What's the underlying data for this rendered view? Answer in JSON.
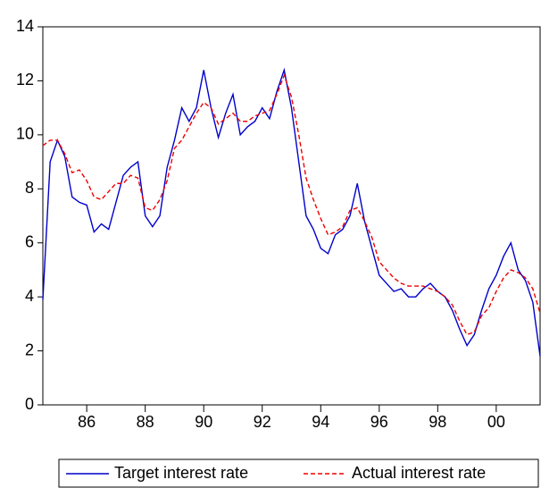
{
  "chart_data": {
    "type": "line",
    "x": [
      1984.5,
      1984.75,
      1985,
      1985.25,
      1985.5,
      1985.75,
      1986,
      1986.25,
      1986.5,
      1986.75,
      1987,
      1987.25,
      1987.5,
      1987.75,
      1988,
      1988.25,
      1988.5,
      1988.75,
      1989,
      1989.25,
      1989.5,
      1989.75,
      1990,
      1990.25,
      1990.5,
      1990.75,
      1991,
      1991.25,
      1991.5,
      1991.75,
      1992,
      1992.25,
      1992.5,
      1992.75,
      1993,
      1993.25,
      1993.5,
      1993.75,
      1994,
      1994.25,
      1994.5,
      1994.75,
      1995,
      1995.25,
      1995.5,
      1995.75,
      1996,
      1996.25,
      1996.5,
      1996.75,
      1997,
      1997.25,
      1997.5,
      1997.75,
      1998,
      1998.25,
      1998.5,
      1998.75,
      1999,
      1999.25,
      1999.5,
      1999.75,
      2000,
      2000.25,
      2000.5,
      2000.75,
      2001,
      2001.25,
      2001.5
    ],
    "series": [
      {
        "name": "Target interest rate",
        "color": "#0000cc",
        "dash": false,
        "values": [
          3.9,
          9.0,
          9.8,
          9.2,
          7.7,
          7.5,
          7.4,
          6.4,
          6.7,
          6.5,
          7.5,
          8.5,
          8.8,
          9.0,
          7.0,
          6.6,
          7.0,
          8.8,
          9.8,
          11.0,
          10.5,
          11.0,
          12.4,
          11.0,
          9.9,
          10.8,
          11.5,
          10.0,
          10.3,
          10.5,
          11.0,
          10.6,
          11.6,
          12.4,
          11.0,
          9.0,
          7.0,
          6.5,
          5.8,
          5.6,
          6.3,
          6.5,
          7.0,
          8.2,
          6.8,
          5.8,
          4.8,
          4.5,
          4.2,
          4.3,
          4.0,
          4.0,
          4.3,
          4.5,
          4.2,
          4.0,
          3.5,
          2.8,
          2.2,
          2.6,
          3.5,
          4.3,
          4.8,
          5.5,
          6.0,
          5.0,
          4.6,
          3.8,
          1.8
        ]
      },
      {
        "name": "Actual interest rate",
        "color": "#ee0000",
        "dash": true,
        "values": [
          9.6,
          9.8,
          9.8,
          9.3,
          8.6,
          8.7,
          8.3,
          7.7,
          7.6,
          7.9,
          8.2,
          8.2,
          8.5,
          8.4,
          7.3,
          7.2,
          7.6,
          8.3,
          9.5,
          9.8,
          10.3,
          10.8,
          11.2,
          11.0,
          10.4,
          10.6,
          10.8,
          10.5,
          10.5,
          10.7,
          10.8,
          10.9,
          11.5,
          12.2,
          11.4,
          10.0,
          8.4,
          7.6,
          6.9,
          6.3,
          6.4,
          6.6,
          7.2,
          7.3,
          6.8,
          6.2,
          5.3,
          5.0,
          4.7,
          4.5,
          4.4,
          4.4,
          4.4,
          4.3,
          4.2,
          4.0,
          3.7,
          3.1,
          2.6,
          2.7,
          3.3,
          3.6,
          4.2,
          4.7,
          5.0,
          4.9,
          4.7,
          4.3,
          3.4
        ]
      }
    ],
    "xlim": [
      1984.5,
      2001.5
    ],
    "xticks": [
      {
        "value": 1986,
        "label": "86"
      },
      {
        "value": 1988,
        "label": "88"
      },
      {
        "value": 1990,
        "label": "90"
      },
      {
        "value": 1992,
        "label": "92"
      },
      {
        "value": 1994,
        "label": "94"
      },
      {
        "value": 1996,
        "label": "96"
      },
      {
        "value": 1998,
        "label": "98"
      },
      {
        "value": 2000,
        "label": "00"
      }
    ],
    "ylim": [
      0,
      14
    ],
    "yticks": [
      0,
      2,
      4,
      6,
      8,
      10,
      12,
      14
    ],
    "legend": "bottom"
  }
}
